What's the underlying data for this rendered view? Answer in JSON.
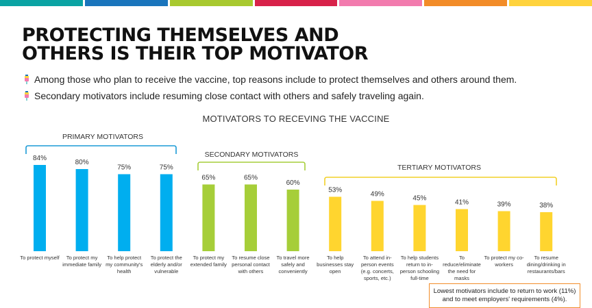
{
  "top_bar": {
    "colors": [
      "#0AA3A3",
      "#1A75BC",
      "#A8C92F",
      "#D8224A",
      "#F27BAE",
      "#F28C28",
      "#FFD33D"
    ]
  },
  "title_lines": [
    "PROTECTING THEMSELVES AND",
    "OTHERS IS THEIR TOP MOTIVATOR"
  ],
  "bullets": [
    {
      "icon": "syringe-icon",
      "text": "Among those who plan to receive the vaccine, top reasons include to protect themselves and others around them."
    },
    {
      "icon": "syringe-icon",
      "text": "Secondary motivators include resuming close contact with others and safely traveling again."
    }
  ],
  "chart_data": {
    "type": "bar",
    "title": "MOTIVATORS TO RECEVING THE VACCINE",
    "ylim": [
      0,
      100
    ],
    "grid": false,
    "groups": [
      {
        "label": "PRIMARY MOTIVATORS",
        "color": "#00AEEF",
        "bracket_color": "#1A9AD6",
        "indices": [
          0,
          1,
          2,
          3
        ]
      },
      {
        "label": "SECONDARY MOTIVATORS",
        "color": "#A6CE39",
        "bracket_color": "#A6CE39",
        "indices": [
          4,
          5,
          6
        ]
      },
      {
        "label": "TERTIARY MOTIVATORS",
        "color": "#FFD52F",
        "bracket_color": "#F2D027",
        "indices": [
          7,
          8,
          9,
          10,
          11,
          12
        ]
      }
    ],
    "categories": [
      [
        "To protect myself"
      ],
      [
        "To protect my",
        "immediate family"
      ],
      [
        "To help protect",
        "my community's",
        "health"
      ],
      [
        "To protect the",
        "elderly and/or",
        "vulnerable"
      ],
      [
        "To protect my",
        "extended family"
      ],
      [
        "To resume close",
        "personal contact",
        "with others"
      ],
      [
        "To travel more",
        "safely and",
        "conveniently"
      ],
      [
        "To help",
        "businesses stay",
        "open"
      ],
      [
        "To attend in-",
        "person events",
        "(e.g. concerts,",
        "sports, etc.)"
      ],
      [
        "To help students",
        "return to in-",
        "person schooling",
        "full-time"
      ],
      [
        "To",
        "reduce/eliminate",
        "the need for",
        "masks"
      ],
      [
        "To protect my co-",
        "workers"
      ],
      [
        "To resume",
        "dining/drinking in",
        "restaurants/bars"
      ]
    ],
    "values": [
      84,
      80,
      75,
      75,
      65,
      65,
      60,
      53,
      49,
      45,
      41,
      39,
      38
    ],
    "value_suffix": "%"
  },
  "note": {
    "lines": [
      "Lowest motivators include to return to work (11%)",
      "and to meet employers' requirements (4%)."
    ]
  }
}
